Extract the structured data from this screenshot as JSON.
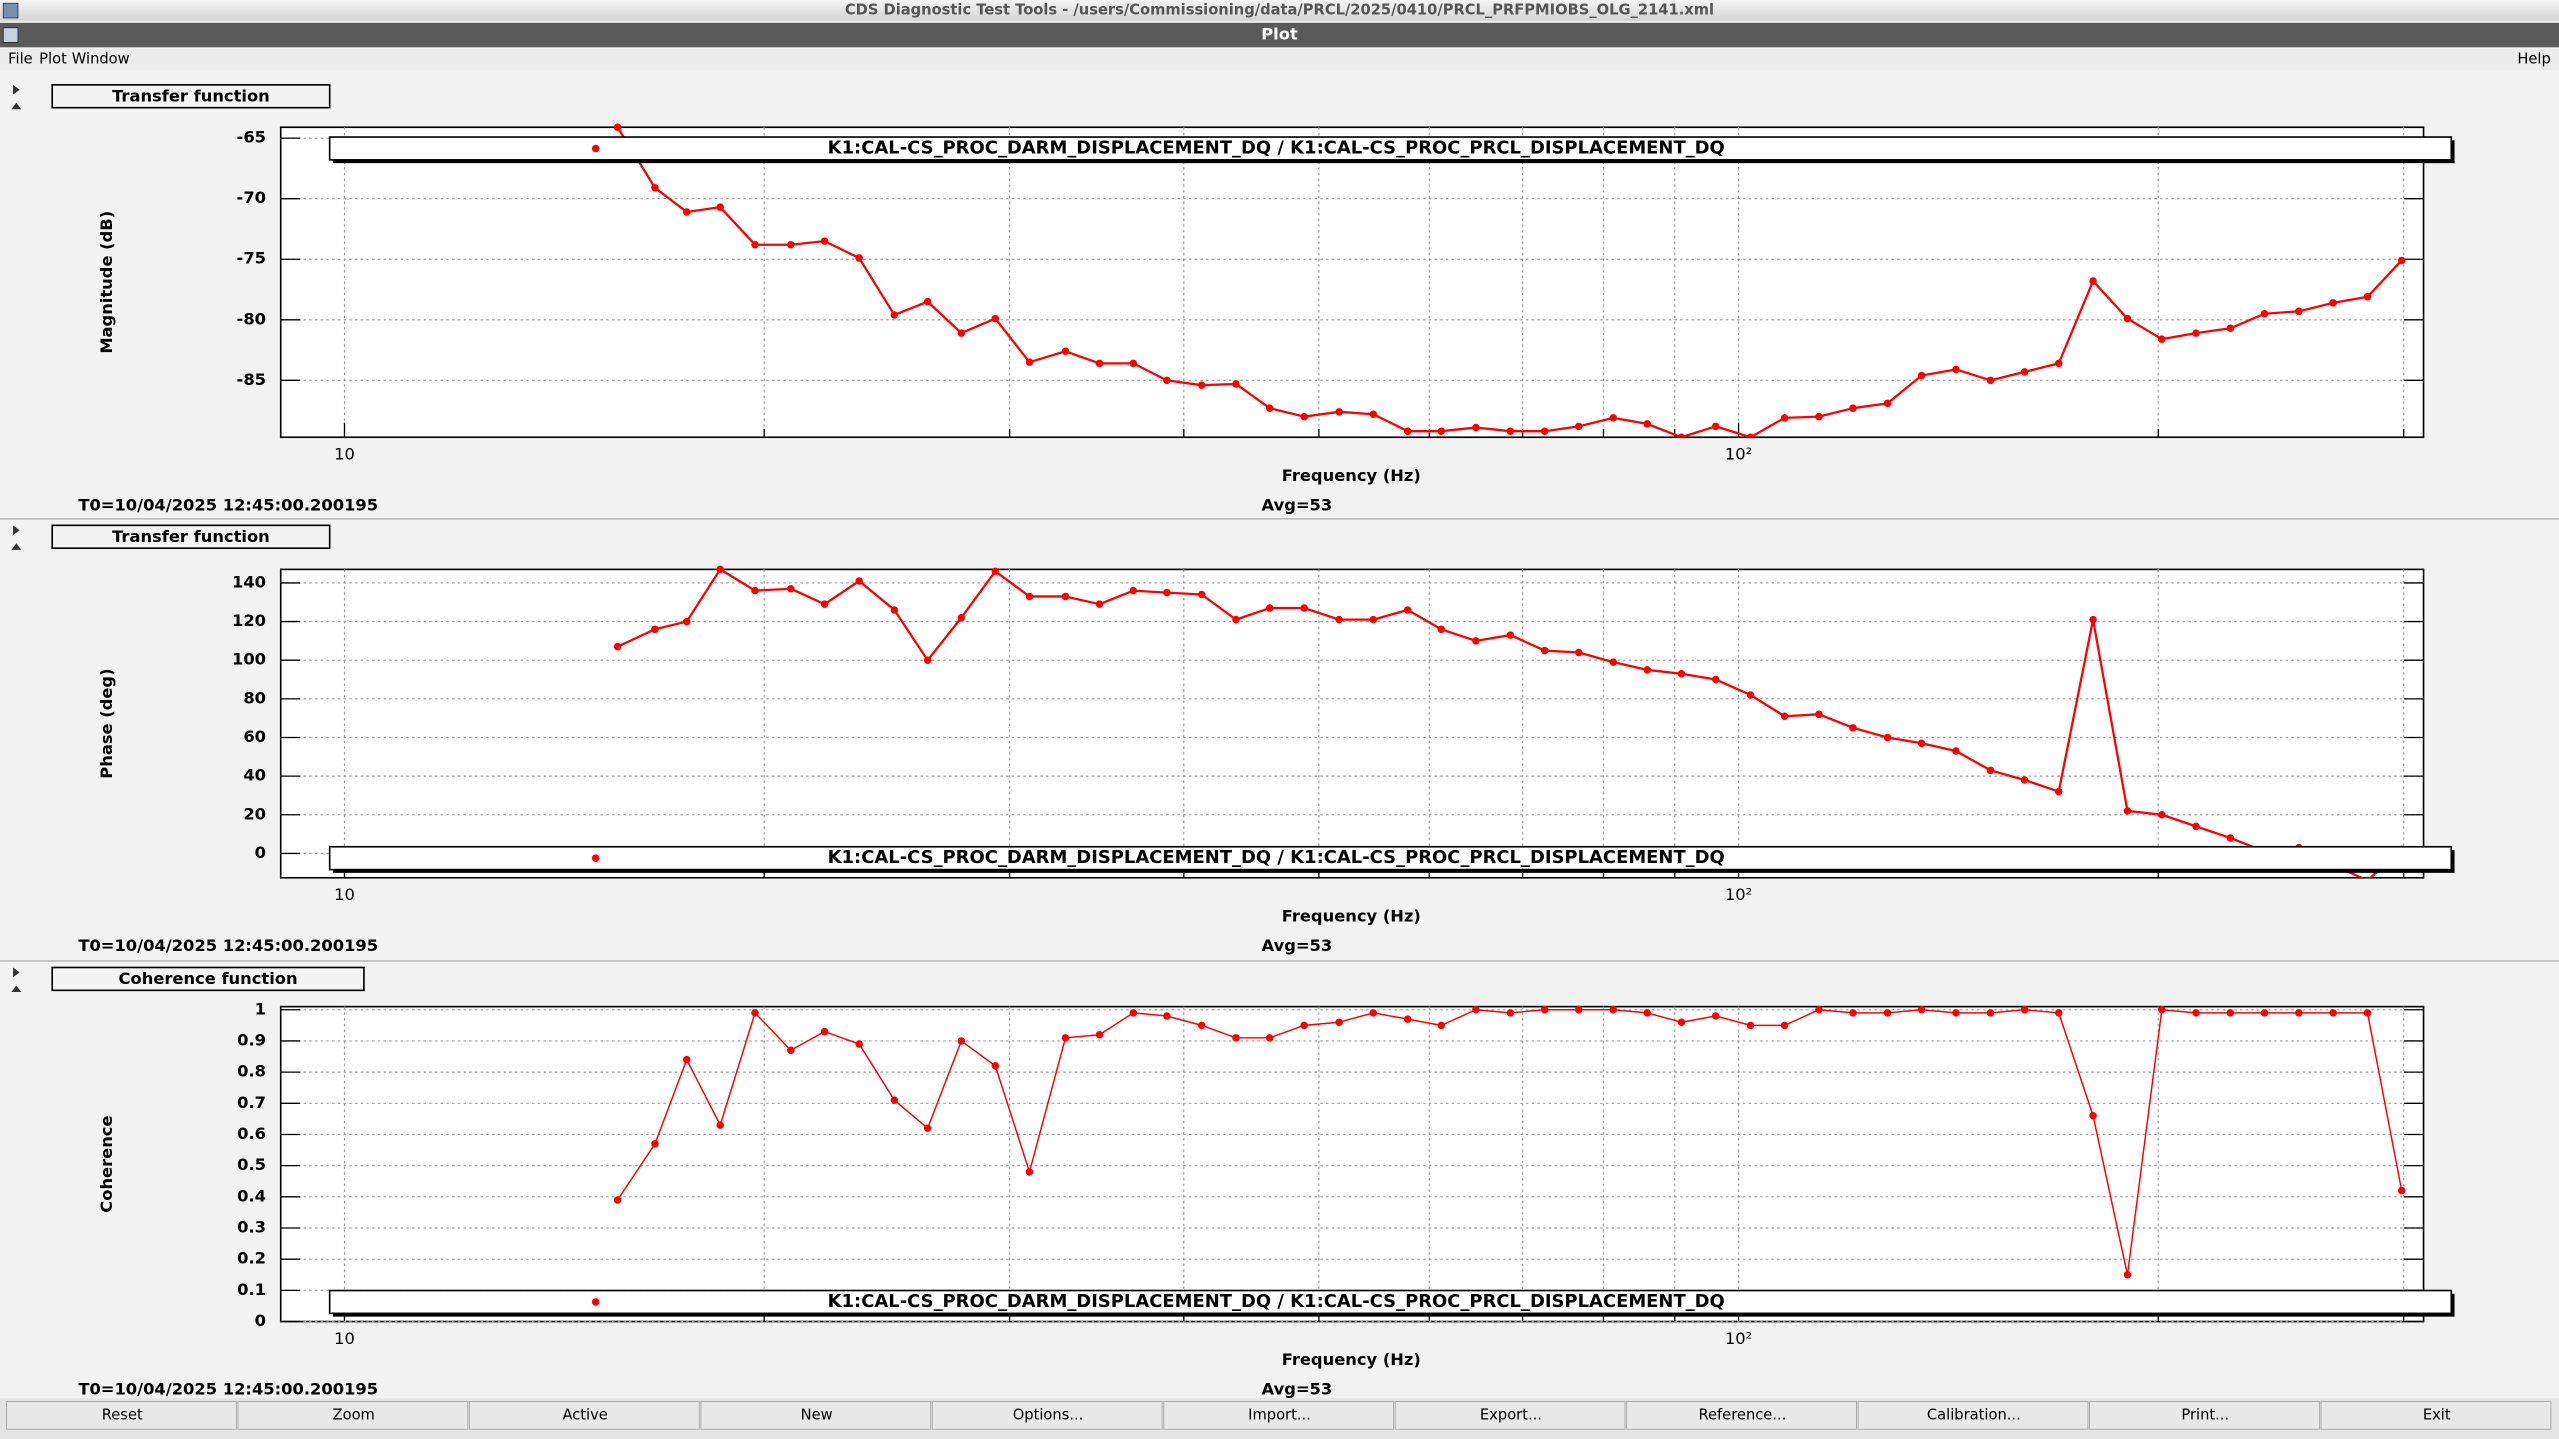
{
  "window": {
    "title": "CDS Diagnostic Test Tools - /users/Commissioning/data/PRCL/2025/0410/PRCL_PRFPMIOBS_OLG_2141.xml",
    "subtitle": "Plot"
  },
  "menu": [
    "File",
    "Plot",
    "Window"
  ],
  "help": "Help",
  "buttons": [
    "Reset",
    "Zoom",
    "Active",
    "New",
    "Options...",
    "Import...",
    "Export...",
    "Reference...",
    "Calibration...",
    "Print...",
    "Exit"
  ],
  "chart_data": [
    {
      "type": "line",
      "panel_title": "Transfer function",
      "xlabel": "Frequency (Hz)",
      "ylabel": "Magnitude (dB)",
      "footer_left": "T0=10/04/2025 12:45:00.200195",
      "footer_right": "Avg=53",
      "x": [
        15.7,
        16.7,
        17.6,
        18.6,
        19.7,
        20.9,
        22.1,
        23.4,
        24.8,
        26.2,
        27.7,
        29.3,
        31.0,
        32.9,
        34.8,
        36.8,
        38.9,
        41.2,
        43.6,
        46.1,
        48.8,
        51.7,
        54.7,
        57.9,
        61.2,
        64.8,
        68.6,
        72.6,
        76.8,
        81.3,
        86.0,
        91.0,
        96.3,
        102.0,
        107.9,
        114.2,
        120.8,
        127.9,
        135.3,
        143.2,
        151.6,
        160.4,
        169.7,
        179.6,
        190.1,
        201.2,
        212.9,
        225.3,
        238.4,
        252.3,
        267.0,
        282.6,
        299.0
      ],
      "series": [
        {
          "name": "K1:CAL-CS_PROC_DARM_DISPLACEMENT_DQ / K1:CAL-CS_PROC_PRCL_DISPLACEMENT_DQ",
          "color": "#ff0000",
          "values": [
            -64.1,
            -69.1,
            -71.1,
            -70.7,
            -73.8,
            -73.8,
            -73.5,
            -74.9,
            -79.6,
            -78.5,
            -81.1,
            -79.9,
            -83.5,
            -82.6,
            -83.6,
            -83.6,
            -85.0,
            -85.4,
            -85.3,
            -87.3,
            -88.0,
            -87.6,
            -87.8,
            -89.2,
            -89.2,
            -88.9,
            -89.2,
            -89.2,
            -88.8,
            -88.1,
            -88.6,
            -89.7,
            -88.8,
            -89.7,
            -88.1,
            -88.0,
            -87.3,
            -86.9,
            -84.6,
            -84.1,
            -85.0,
            -84.3,
            -83.6,
            -76.8,
            -79.9,
            -81.6,
            -81.1,
            -80.7,
            -79.5,
            -79.3,
            -78.6,
            -78.1,
            -75.1
          ]
        }
      ],
      "xlim": [
        9,
        310
      ],
      "xlog": true,
      "xticks": [
        10,
        {
          "value": 100,
          "label": "10²"
        }
      ],
      "xminorticks": [
        20,
        30,
        40,
        50,
        60,
        70,
        80,
        90,
        200,
        300
      ],
      "ylim": [
        -89.7,
        -64.1
      ],
      "yticks": [
        -85,
        -80,
        -75,
        -70,
        -65
      ],
      "grid": true,
      "legend_position": "top"
    },
    {
      "type": "line",
      "panel_title": "Transfer function",
      "xlabel": "Frequency (Hz)",
      "ylabel": "Phase (deg)",
      "footer_left": "T0=10/04/2025 12:45:00.200195",
      "footer_right": "Avg=53",
      "x": [
        15.7,
        16.7,
        17.6,
        18.6,
        19.7,
        20.9,
        22.1,
        23.4,
        24.8,
        26.2,
        27.7,
        29.3,
        31.0,
        32.9,
        34.8,
        36.8,
        38.9,
        41.2,
        43.6,
        46.1,
        48.8,
        51.7,
        54.7,
        57.9,
        61.2,
        64.8,
        68.6,
        72.6,
        76.8,
        81.3,
        86.0,
        91.0,
        96.3,
        102.0,
        107.9,
        114.2,
        120.8,
        127.9,
        135.3,
        143.2,
        151.6,
        160.4,
        169.7,
        179.6,
        190.1,
        201.2,
        212.9,
        225.3,
        238.4,
        252.3,
        267.0,
        282.6,
        299.0
      ],
      "series": [
        {
          "name": "K1:CAL-CS_PROC_DARM_DISPLACEMENT_DQ / K1:CAL-CS_PROC_PRCL_DISPLACEMENT_DQ",
          "color": "#ff0000",
          "values": [
            107,
            116,
            120,
            147,
            136,
            137,
            129,
            141,
            126,
            100,
            122,
            146,
            133,
            133,
            129,
            136,
            135,
            134,
            121,
            127,
            127,
            121,
            121,
            126,
            116,
            110,
            113,
            105,
            104,
            99,
            95,
            93,
            90,
            82,
            71,
            72,
            65,
            60,
            57,
            53,
            43,
            38,
            32,
            121,
            22,
            20,
            14,
            8,
            1,
            3,
            -6,
            -14,
            2
          ]
        }
      ],
      "xlim": [
        9,
        310
      ],
      "xlog": true,
      "xticks": [
        10,
        {
          "value": 100,
          "label": "10²"
        }
      ],
      "xminorticks": [
        20,
        30,
        40,
        50,
        60,
        70,
        80,
        90,
        200,
        300
      ],
      "ylim": [
        -12.6,
        147
      ],
      "yticks": [
        0,
        20,
        40,
        60,
        80,
        100,
        120,
        140
      ],
      "grid": true,
      "legend_position": "bottom"
    },
    {
      "type": "line",
      "panel_title": "Coherence function",
      "xlabel": "Frequency (Hz)",
      "ylabel": "Coherence",
      "footer_left": "T0=10/04/2025 12:45:00.200195",
      "footer_right": "Avg=53",
      "x": [
        15.7,
        16.7,
        17.6,
        18.6,
        19.7,
        20.9,
        22.1,
        23.4,
        24.8,
        26.2,
        27.7,
        29.3,
        31.0,
        32.9,
        34.8,
        36.8,
        38.9,
        41.2,
        43.6,
        46.1,
        48.8,
        51.7,
        54.7,
        57.9,
        61.2,
        64.8,
        68.6,
        72.6,
        76.8,
        81.3,
        86.0,
        91.0,
        96.3,
        102.0,
        107.9,
        114.2,
        120.8,
        127.9,
        135.3,
        143.2,
        151.6,
        160.4,
        169.7,
        179.6,
        190.1,
        201.2,
        212.9,
        225.3,
        238.4,
        252.3,
        267.0,
        282.6,
        299.0
      ],
      "series": [
        {
          "name": "K1:CAL-CS_PROC_DARM_DISPLACEMENT_DQ / K1:CAL-CS_PROC_PRCL_DISPLACEMENT_DQ",
          "color": "#ff0000",
          "values": [
            0.39,
            0.57,
            0.84,
            0.63,
            0.99,
            0.87,
            0.93,
            0.89,
            0.71,
            0.62,
            0.9,
            0.82,
            0.48,
            0.91,
            0.92,
            0.99,
            0.98,
            0.95,
            0.91,
            0.91,
            0.95,
            0.96,
            0.99,
            0.97,
            0.95,
            1,
            0.99,
            1,
            1,
            1,
            0.99,
            0.96,
            0.98,
            0.95,
            0.95,
            1,
            0.99,
            0.99,
            1,
            0.99,
            0.99,
            1,
            0.99,
            0.66,
            0.15,
            1,
            0.99,
            0.99,
            0.99,
            0.99,
            0.99,
            0.99,
            0.42
          ]
        }
      ],
      "xlim": [
        9,
        310
      ],
      "xlog": true,
      "xticks": [
        10,
        {
          "value": 100,
          "label": "10²"
        }
      ],
      "xminorticks": [
        20,
        30,
        40,
        50,
        60,
        70,
        80,
        90,
        200,
        300
      ],
      "ylim": [
        0,
        1.01
      ],
      "yticks": [
        0,
        0.1,
        0.2,
        0.3,
        0.4,
        0.5,
        0.6,
        0.7,
        0.8,
        0.9,
        1
      ],
      "grid": true,
      "legend_position": "bottom"
    }
  ]
}
